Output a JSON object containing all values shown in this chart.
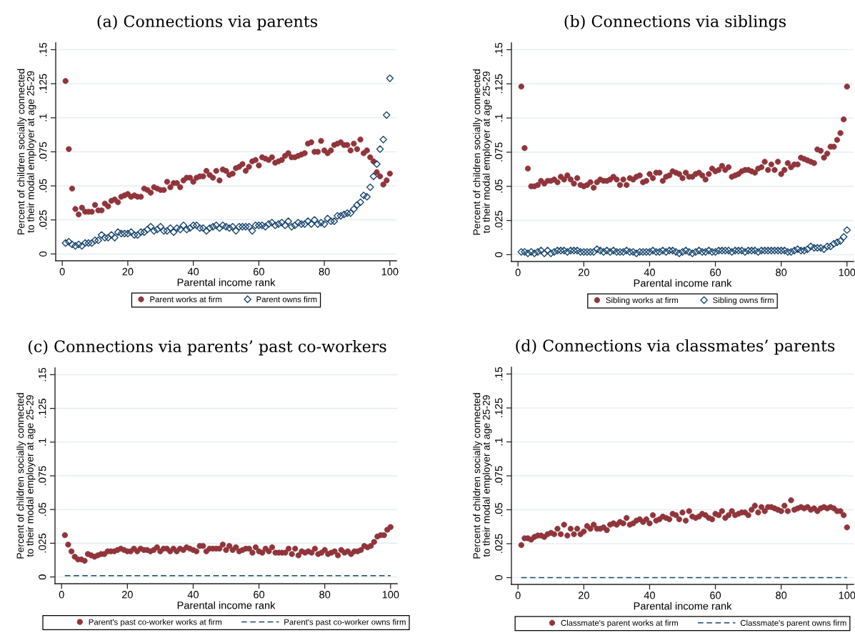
{
  "chart_data": [
    {
      "type": "scatter",
      "title": "(a) Connections via parents",
      "xlabel": "Parental income rank",
      "ylabel": "Percent of children socially connected\nto their modal employer at age 25-29",
      "x": [
        1,
        2,
        3,
        4,
        5,
        6,
        7,
        8,
        9,
        10,
        11,
        12,
        13,
        14,
        15,
        16,
        17,
        18,
        19,
        20,
        21,
        22,
        23,
        24,
        25,
        26,
        27,
        28,
        29,
        30,
        31,
        32,
        33,
        34,
        35,
        36,
        37,
        38,
        39,
        40,
        41,
        42,
        43,
        44,
        45,
        46,
        47,
        48,
        49,
        50,
        51,
        52,
        53,
        54,
        55,
        56,
        57,
        58,
        59,
        60,
        61,
        62,
        63,
        64,
        65,
        66,
        67,
        68,
        69,
        70,
        71,
        72,
        73,
        74,
        75,
        76,
        77,
        78,
        79,
        80,
        81,
        82,
        83,
        84,
        85,
        86,
        87,
        88,
        89,
        90,
        91,
        92,
        93,
        94,
        95,
        96,
        97,
        98,
        99,
        100
      ],
      "xlim": [
        -2,
        102
      ],
      "xticks": [
        0,
        20,
        40,
        60,
        80,
        100
      ],
      "ylim": [
        -0.005,
        0.155
      ],
      "yticks": [
        0,
        {
          "value": 0.025,
          "label": ".025"
        },
        {
          "value": 0.05,
          "label": ".05"
        },
        {
          "value": 0.075,
          "label": ".075"
        },
        {
          "value": 0.1,
          "label": ".1"
        },
        {
          "value": 0.125,
          "label": ".125"
        },
        {
          "value": 0.15,
          "label": ".15"
        }
      ],
      "grid": "y",
      "legend": "bottom",
      "series": [
        {
          "name": "Parent works at firm",
          "color": "#90353b",
          "marker": "circle",
          "values": [
            0.127,
            0.077,
            0.048,
            0.033,
            0.029,
            0.034,
            0.031,
            0.031,
            0.031,
            0.036,
            0.032,
            0.032,
            0.037,
            0.035,
            0.039,
            0.04,
            0.038,
            0.042,
            0.043,
            0.044,
            0.042,
            0.043,
            0.042,
            0.042,
            0.048,
            0.047,
            0.045,
            0.049,
            0.048,
            0.047,
            0.047,
            0.053,
            0.049,
            0.052,
            0.052,
            0.049,
            0.054,
            0.056,
            0.056,
            0.053,
            0.056,
            0.057,
            0.057,
            0.061,
            0.058,
            0.056,
            0.061,
            0.054,
            0.062,
            0.061,
            0.058,
            0.059,
            0.063,
            0.064,
            0.066,
            0.061,
            0.064,
            0.068,
            0.069,
            0.065,
            0.071,
            0.07,
            0.069,
            0.071,
            0.067,
            0.068,
            0.069,
            0.072,
            0.074,
            0.071,
            0.071,
            0.072,
            0.073,
            0.074,
            0.081,
            0.082,
            0.075,
            0.075,
            0.083,
            0.076,
            0.074,
            0.076,
            0.08,
            0.081,
            0.082,
            0.08,
            0.08,
            0.076,
            0.081,
            0.077,
            0.084,
            0.074,
            0.076,
            0.071,
            0.068,
            0.06,
            0.057,
            0.051,
            0.054,
            0.059
          ]
        },
        {
          "name": "Parent owns firm",
          "color": "#1a476f",
          "marker": "diamond",
          "values": [
            0.008,
            0.009,
            0.007,
            0.006,
            0.007,
            0.006,
            0.008,
            0.008,
            0.008,
            0.01,
            0.01,
            0.014,
            0.012,
            0.012,
            0.014,
            0.012,
            0.016,
            0.015,
            0.015,
            0.015,
            0.016,
            0.014,
            0.014,
            0.016,
            0.016,
            0.018,
            0.02,
            0.017,
            0.018,
            0.02,
            0.017,
            0.017,
            0.019,
            0.016,
            0.019,
            0.018,
            0.021,
            0.018,
            0.019,
            0.021,
            0.021,
            0.019,
            0.019,
            0.017,
            0.019,
            0.02,
            0.021,
            0.019,
            0.021,
            0.02,
            0.019,
            0.02,
            0.017,
            0.02,
            0.02,
            0.02,
            0.02,
            0.017,
            0.021,
            0.021,
            0.021,
            0.02,
            0.022,
            0.023,
            0.021,
            0.022,
            0.023,
            0.021,
            0.024,
            0.02,
            0.021,
            0.023,
            0.022,
            0.022,
            0.024,
            0.022,
            0.025,
            0.022,
            0.023,
            0.022,
            0.026,
            0.024,
            0.024,
            0.028,
            0.028,
            0.029,
            0.03,
            0.03,
            0.033,
            0.036,
            0.038,
            0.043,
            0.042,
            0.049,
            0.057,
            0.066,
            0.077,
            0.084,
            0.102,
            0.129
          ]
        }
      ]
    },
    {
      "type": "scatter",
      "title": "(b) Connections via siblings",
      "xlabel": "Parental income rank",
      "ylabel": "Percent of children socially connected\nto their modal employer at age 25-29",
      "x": [
        1,
        2,
        3,
        4,
        5,
        6,
        7,
        8,
        9,
        10,
        11,
        12,
        13,
        14,
        15,
        16,
        17,
        18,
        19,
        20,
        21,
        22,
        23,
        24,
        25,
        26,
        27,
        28,
        29,
        30,
        31,
        32,
        33,
        34,
        35,
        36,
        37,
        38,
        39,
        40,
        41,
        42,
        43,
        44,
        45,
        46,
        47,
        48,
        49,
        50,
        51,
        52,
        53,
        54,
        55,
        56,
        57,
        58,
        59,
        60,
        61,
        62,
        63,
        64,
        65,
        66,
        67,
        68,
        69,
        70,
        71,
        72,
        73,
        74,
        75,
        76,
        77,
        78,
        79,
        80,
        81,
        82,
        83,
        84,
        85,
        86,
        87,
        88,
        89,
        90,
        91,
        92,
        93,
        94,
        95,
        96,
        97,
        98,
        99,
        100
      ],
      "xlim": [
        -2,
        102
      ],
      "xticks": [
        0,
        20,
        40,
        60,
        80,
        100
      ],
      "ylim": [
        -0.005,
        0.155
      ],
      "yticks": [
        0,
        {
          "value": 0.025,
          "label": ".025"
        },
        {
          "value": 0.05,
          "label": ".05"
        },
        {
          "value": 0.075,
          "label": ".075"
        },
        {
          "value": 0.1,
          "label": ".1"
        },
        {
          "value": 0.125,
          "label": ".125"
        },
        {
          "value": 0.15,
          "label": ".15"
        }
      ],
      "grid": "y",
      "legend": "bottom",
      "series": [
        {
          "name": "Sibling works at firm",
          "color": "#90353b",
          "marker": "circle",
          "values": [
            0.123,
            0.078,
            0.063,
            0.05,
            0.05,
            0.051,
            0.054,
            0.052,
            0.054,
            0.054,
            0.055,
            0.053,
            0.057,
            0.055,
            0.058,
            0.055,
            0.052,
            0.056,
            0.051,
            0.05,
            0.051,
            0.053,
            0.049,
            0.053,
            0.055,
            0.054,
            0.054,
            0.055,
            0.057,
            0.055,
            0.051,
            0.055,
            0.051,
            0.056,
            0.055,
            0.057,
            0.058,
            0.053,
            0.054,
            0.059,
            0.056,
            0.06,
            0.06,
            0.054,
            0.057,
            0.058,
            0.061,
            0.06,
            0.059,
            0.056,
            0.06,
            0.057,
            0.057,
            0.059,
            0.06,
            0.058,
            0.055,
            0.059,
            0.063,
            0.061,
            0.062,
            0.065,
            0.062,
            0.064,
            0.057,
            0.058,
            0.059,
            0.061,
            0.062,
            0.062,
            0.061,
            0.06,
            0.063,
            0.064,
            0.068,
            0.062,
            0.066,
            0.062,
            0.068,
            0.059,
            0.062,
            0.067,
            0.064,
            0.066,
            0.066,
            0.071,
            0.07,
            0.069,
            0.068,
            0.067,
            0.077,
            0.076,
            0.071,
            0.074,
            0.079,
            0.079,
            0.084,
            0.089,
            0.099,
            0.123
          ]
        },
        {
          "name": "Sibling owns firm",
          "color": "#1a476f",
          "marker": "diamond",
          "values": [
            0.002,
            0.002,
            0.001,
            0.002,
            0.001,
            0.002,
            0.003,
            0.001,
            0.003,
            0.001,
            0.002,
            0.003,
            0.003,
            0.003,
            0.002,
            0.003,
            0.003,
            0.003,
            0.002,
            0.002,
            0.002,
            0.002,
            0.002,
            0.004,
            0.003,
            0.002,
            0.003,
            0.002,
            0.003,
            0.002,
            0.002,
            0.002,
            0.003,
            0.002,
            0.002,
            0.001,
            0.002,
            0.002,
            0.002,
            0.002,
            0.003,
            0.002,
            0.002,
            0.003,
            0.002,
            0.003,
            0.003,
            0.002,
            0.001,
            0.002,
            0.003,
            0.002,
            0.001,
            0.002,
            0.003,
            0.002,
            0.002,
            0.003,
            0.002,
            0.002,
            0.003,
            0.003,
            0.003,
            0.003,
            0.002,
            0.003,
            0.003,
            0.003,
            0.002,
            0.003,
            0.003,
            0.003,
            0.002,
            0.003,
            0.003,
            0.003,
            0.003,
            0.003,
            0.003,
            0.003,
            0.003,
            0.002,
            0.002,
            0.003,
            0.004,
            0.003,
            0.003,
            0.004,
            0.006,
            0.005,
            0.005,
            0.005,
            0.004,
            0.006,
            0.006,
            0.008,
            0.009,
            0.01,
            0.013,
            0.018
          ]
        }
      ]
    },
    {
      "type": "scatter",
      "title": "(c) Connections via parents’ past co-workers",
      "xlabel": "Parental income rank",
      "ylabel": "Percent of children socially connected\nto their modal employer at age 25-29",
      "x": [
        1,
        2,
        3,
        4,
        5,
        6,
        7,
        8,
        9,
        10,
        11,
        12,
        13,
        14,
        15,
        16,
        17,
        18,
        19,
        20,
        21,
        22,
        23,
        24,
        25,
        26,
        27,
        28,
        29,
        30,
        31,
        32,
        33,
        34,
        35,
        36,
        37,
        38,
        39,
        40,
        41,
        42,
        43,
        44,
        45,
        46,
        47,
        48,
        49,
        50,
        51,
        52,
        53,
        54,
        55,
        56,
        57,
        58,
        59,
        60,
        61,
        62,
        63,
        64,
        65,
        66,
        67,
        68,
        69,
        70,
        71,
        72,
        73,
        74,
        75,
        76,
        77,
        78,
        79,
        80,
        81,
        82,
        83,
        84,
        85,
        86,
        87,
        88,
        89,
        90,
        91,
        92,
        93,
        94,
        95,
        96,
        97,
        98,
        99,
        100
      ],
      "xlim": [
        -2,
        102
      ],
      "xticks": [
        0,
        20,
        40,
        60,
        80,
        100
      ],
      "ylim": [
        -0.005,
        0.155
      ],
      "yticks": [
        0,
        {
          "value": 0.025,
          "label": ".025"
        },
        {
          "value": 0.05,
          "label": ".05"
        },
        {
          "value": 0.075,
          "label": ".075"
        },
        {
          "value": 0.1,
          "label": ".1"
        },
        {
          "value": 0.125,
          "label": ".125"
        },
        {
          "value": 0.15,
          "label": ".15"
        }
      ],
      "grid": "y",
      "legend": "bottom",
      "series": [
        {
          "name": "Parent's past co-worker works at firm",
          "color": "#90353b",
          "marker": "circle",
          "values": [
            0.031,
            0.024,
            0.019,
            0.015,
            0.013,
            0.013,
            0.012,
            0.017,
            0.016,
            0.015,
            0.016,
            0.017,
            0.017,
            0.019,
            0.019,
            0.019,
            0.02,
            0.021,
            0.02,
            0.019,
            0.019,
            0.021,
            0.019,
            0.021,
            0.02,
            0.02,
            0.019,
            0.02,
            0.022,
            0.019,
            0.021,
            0.021,
            0.019,
            0.021,
            0.019,
            0.021,
            0.02,
            0.022,
            0.021,
            0.02,
            0.019,
            0.023,
            0.023,
            0.019,
            0.021,
            0.021,
            0.021,
            0.021,
            0.024,
            0.02,
            0.023,
            0.02,
            0.022,
            0.019,
            0.02,
            0.021,
            0.021,
            0.018,
            0.022,
            0.019,
            0.018,
            0.021,
            0.019,
            0.022,
            0.018,
            0.018,
            0.018,
            0.018,
            0.021,
            0.017,
            0.021,
            0.016,
            0.019,
            0.018,
            0.019,
            0.018,
            0.021,
            0.017,
            0.018,
            0.02,
            0.017,
            0.018,
            0.019,
            0.016,
            0.02,
            0.018,
            0.019,
            0.017,
            0.019,
            0.019,
            0.02,
            0.023,
            0.022,
            0.023,
            0.026,
            0.03,
            0.031,
            0.031,
            0.035,
            0.037
          ]
        },
        {
          "name": "Parent's past co-worker owns firm",
          "type": "line",
          "color": "#1a476f",
          "line_style": "dashed",
          "marker": "none",
          "values": [
            0.001,
            0.001,
            0.001,
            0.001,
            0.001,
            0.001,
            0.001,
            0.001,
            0.001,
            0.001,
            0.001,
            0.001,
            0.001,
            0.001,
            0.001,
            0.001,
            0.001,
            0.001,
            0.001,
            0.001,
            0.001,
            0.001,
            0.001,
            0.001,
            0.001,
            0.001,
            0.001,
            0.001,
            0.001,
            0.001,
            0.001,
            0.001,
            0.001,
            0.001,
            0.001,
            0.001,
            0.001,
            0.001,
            0.001,
            0.001,
            0.001,
            0.001,
            0.001,
            0.001,
            0.001,
            0.001,
            0.001,
            0.001,
            0.001,
            0.001,
            0.001,
            0.001,
            0.001,
            0.001,
            0.001,
            0.001,
            0.001,
            0.001,
            0.001,
            0.001,
            0.001,
            0.001,
            0.001,
            0.001,
            0.001,
            0.001,
            0.001,
            0.001,
            0.001,
            0.001,
            0.001,
            0.001,
            0.001,
            0.001,
            0.001,
            0.001,
            0.001,
            0.001,
            0.001,
            0.001,
            0.001,
            0.001,
            0.001,
            0.001,
            0.001,
            0.001,
            0.001,
            0.001,
            0.001,
            0.001,
            0.001,
            0.001,
            0.001,
            0.001,
            0.001,
            0.001,
            0.001,
            0.001,
            0.001,
            0.001
          ]
        }
      ]
    },
    {
      "type": "scatter",
      "title": "(d) Connections via classmates’ parents",
      "xlabel": "Parental income rank",
      "ylabel": "Percent of children socially connected\nto their modal employer at age 25-29",
      "x": [
        1,
        2,
        3,
        4,
        5,
        6,
        7,
        8,
        9,
        10,
        11,
        12,
        13,
        14,
        15,
        16,
        17,
        18,
        19,
        20,
        21,
        22,
        23,
        24,
        25,
        26,
        27,
        28,
        29,
        30,
        31,
        32,
        33,
        34,
        35,
        36,
        37,
        38,
        39,
        40,
        41,
        42,
        43,
        44,
        45,
        46,
        47,
        48,
        49,
        50,
        51,
        52,
        53,
        54,
        55,
        56,
        57,
        58,
        59,
        60,
        61,
        62,
        63,
        64,
        65,
        66,
        67,
        68,
        69,
        70,
        71,
        72,
        73,
        74,
        75,
        76,
        77,
        78,
        79,
        80,
        81,
        82,
        83,
        84,
        85,
        86,
        87,
        88,
        89,
        90,
        91,
        92,
        93,
        94,
        95,
        96,
        97,
        98,
        99,
        100
      ],
      "xlim": [
        -2,
        102
      ],
      "xticks": [
        0,
        20,
        40,
        60,
        80,
        100
      ],
      "ylim": [
        -0.005,
        0.155
      ],
      "yticks": [
        0,
        {
          "value": 0.025,
          "label": ".025"
        },
        {
          "value": 0.05,
          "label": ".05"
        },
        {
          "value": 0.075,
          "label": ".075"
        },
        {
          "value": 0.1,
          "label": ".1"
        },
        {
          "value": 0.125,
          "label": ".125"
        },
        {
          "value": 0.15,
          "label": ".15"
        }
      ],
      "grid": "y",
      "legend": "bottom",
      "series": [
        {
          "name": "Classmate's parent works at firm",
          "color": "#90353b",
          "marker": "circle",
          "values": [
            0.024,
            0.029,
            0.029,
            0.028,
            0.03,
            0.031,
            0.031,
            0.03,
            0.032,
            0.033,
            0.032,
            0.036,
            0.032,
            0.039,
            0.031,
            0.036,
            0.032,
            0.036,
            0.032,
            0.034,
            0.038,
            0.036,
            0.039,
            0.036,
            0.036,
            0.037,
            0.035,
            0.039,
            0.04,
            0.039,
            0.041,
            0.04,
            0.044,
            0.039,
            0.04,
            0.042,
            0.043,
            0.041,
            0.043,
            0.04,
            0.046,
            0.042,
            0.043,
            0.045,
            0.044,
            0.043,
            0.047,
            0.046,
            0.043,
            0.048,
            0.042,
            0.049,
            0.045,
            0.044,
            0.045,
            0.047,
            0.046,
            0.044,
            0.043,
            0.047,
            0.046,
            0.049,
            0.044,
            0.046,
            0.049,
            0.046,
            0.047,
            0.048,
            0.048,
            0.046,
            0.05,
            0.053,
            0.048,
            0.052,
            0.049,
            0.052,
            0.052,
            0.051,
            0.05,
            0.049,
            0.053,
            0.049,
            0.057,
            0.05,
            0.051,
            0.052,
            0.051,
            0.052,
            0.05,
            0.051,
            0.049,
            0.051,
            0.052,
            0.051,
            0.052,
            0.051,
            0.049,
            0.049,
            0.046,
            0.037
          ]
        },
        {
          "name": "Classmate's parent owns firm",
          "type": "line",
          "color": "#1a476f",
          "line_style": "dashed",
          "marker": "none",
          "values": [
            0,
            0,
            0,
            0,
            0,
            0,
            0,
            0,
            0,
            0,
            0,
            0,
            0,
            0,
            0,
            0,
            0,
            0,
            0,
            0,
            0,
            0,
            0,
            0,
            0,
            0,
            0,
            0,
            0,
            0,
            0,
            0,
            0,
            0,
            0,
            0,
            0,
            0,
            0,
            0,
            0,
            0,
            0,
            0,
            0,
            0,
            0,
            0,
            0,
            0,
            0,
            0,
            0,
            0,
            0,
            0,
            0,
            0,
            0,
            0,
            0,
            0,
            0,
            0,
            0,
            0,
            0,
            0,
            0,
            0,
            0,
            0,
            0,
            0,
            0,
            0,
            0,
            0,
            0,
            0,
            0,
            0,
            0,
            0,
            0,
            0,
            0,
            0,
            0,
            0,
            0,
            0,
            0,
            0,
            0,
            0,
            0,
            0,
            0,
            0
          ]
        }
      ]
    }
  ]
}
